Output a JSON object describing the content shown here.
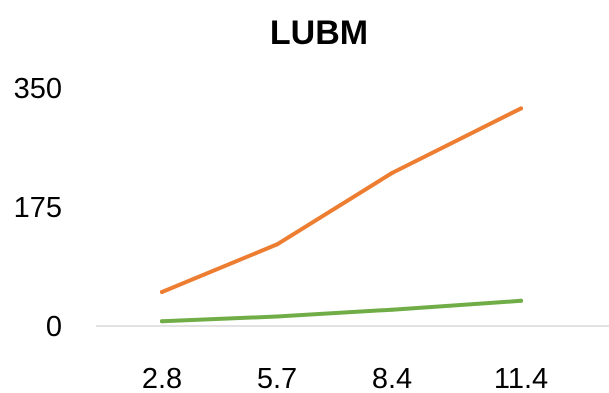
{
  "chart_data": {
    "type": "line",
    "title": "LUBM",
    "xlabel": "",
    "ylabel": "",
    "categories": [
      "2.8",
      "5.7",
      "8.4",
      "11.4"
    ],
    "ylim": [
      0,
      350
    ],
    "yticks": [
      "0",
      "175",
      "350"
    ],
    "grid": false,
    "legend": "none",
    "series": [
      {
        "values": [
          50,
          120,
          225,
          320
        ],
        "color": "#ED7D31"
      },
      {
        "values": [
          7,
          14,
          24,
          37
        ],
        "color": "#70AD47"
      }
    ]
  }
}
